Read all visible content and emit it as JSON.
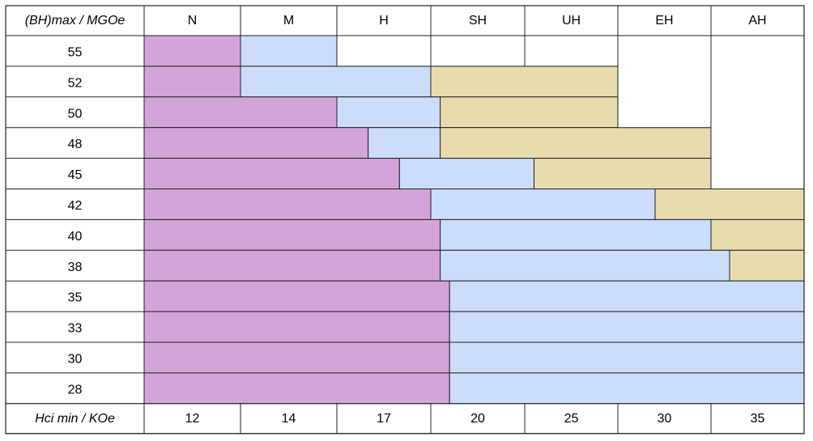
{
  "chart_data": {
    "type": "table",
    "header_label": "(BH)max / MGOe",
    "footer_label": "Hci min / KOe",
    "grades": [
      "N",
      "M",
      "H",
      "SH",
      "UH",
      "EH",
      "AH"
    ],
    "hci_min": [
      "12",
      "14",
      "17",
      "20",
      "25",
      "30",
      "35"
    ],
    "colors": {
      "N": "#d5a3db",
      "M": "#ccdcfb",
      "H": "#e8dcae",
      "border": "#222222"
    },
    "rows": [
      {
        "bhmax": "55",
        "bands": [
          {
            "grade": "N",
            "from": 12,
            "to": 14
          },
          {
            "grade": "M",
            "from": 14,
            "to": 17
          }
        ]
      },
      {
        "bhmax": "52",
        "bands": [
          {
            "grade": "N",
            "from": 12,
            "to": 14
          },
          {
            "grade": "M",
            "from": 14,
            "to": 20
          },
          {
            "grade": "H",
            "from": 20,
            "to": 30
          }
        ]
      },
      {
        "bhmax": "50",
        "bands": [
          {
            "grade": "N",
            "from": 12,
            "to": 17
          },
          {
            "grade": "M",
            "from": 17,
            "to": 20.5
          },
          {
            "grade": "H",
            "from": 20.5,
            "to": 30
          }
        ]
      },
      {
        "bhmax": "48",
        "bands": [
          {
            "grade": "N",
            "from": 12,
            "to": 18
          },
          {
            "grade": "M",
            "from": 18,
            "to": 20.5
          },
          {
            "grade": "H",
            "from": 20.5,
            "to": 35
          }
        ]
      },
      {
        "bhmax": "45",
        "bands": [
          {
            "grade": "N",
            "from": 12,
            "to": 19
          },
          {
            "grade": "M",
            "from": 19,
            "to": 25.5
          },
          {
            "grade": "H",
            "from": 25.5,
            "to": 35
          }
        ]
      },
      {
        "bhmax": "42",
        "bands": [
          {
            "grade": "N",
            "from": 12,
            "to": 20
          },
          {
            "grade": "M",
            "from": 20,
            "to": 32
          },
          {
            "grade": "H",
            "from": 32,
            "to": 40
          }
        ]
      },
      {
        "bhmax": "40",
        "bands": [
          {
            "grade": "N",
            "from": 12,
            "to": 20.5
          },
          {
            "grade": "M",
            "from": 20.5,
            "to": 35
          },
          {
            "grade": "H",
            "from": 35,
            "to": 40
          }
        ]
      },
      {
        "bhmax": "38",
        "bands": [
          {
            "grade": "N",
            "from": 12,
            "to": 20.5
          },
          {
            "grade": "M",
            "from": 20.5,
            "to": 36
          },
          {
            "grade": "H",
            "from": 36,
            "to": 40
          }
        ]
      },
      {
        "bhmax": "35",
        "bands": [
          {
            "grade": "N",
            "from": 12,
            "to": 21
          },
          {
            "grade": "M",
            "from": 21,
            "to": 40
          }
        ]
      },
      {
        "bhmax": "33",
        "bands": [
          {
            "grade": "N",
            "from": 12,
            "to": 21
          },
          {
            "grade": "M",
            "from": 21,
            "to": 40
          }
        ]
      },
      {
        "bhmax": "30",
        "bands": [
          {
            "grade": "N",
            "from": 12,
            "to": 21
          },
          {
            "grade": "M",
            "from": 21,
            "to": 40
          }
        ]
      },
      {
        "bhmax": "28",
        "bands": [
          {
            "grade": "N",
            "from": 12,
            "to": 21
          },
          {
            "grade": "M",
            "from": 21,
            "to": 40
          }
        ]
      }
    ],
    "empty_blocks": [
      {
        "from_row": "55",
        "to_row": "55",
        "columns": [
          "H",
          "SH",
          "UH"
        ]
      },
      {
        "from_row": "55",
        "to_row": "50",
        "columns": [
          "EH"
        ]
      },
      {
        "from_row": "55",
        "to_row": "45",
        "columns": [
          "AH"
        ]
      }
    ]
  }
}
